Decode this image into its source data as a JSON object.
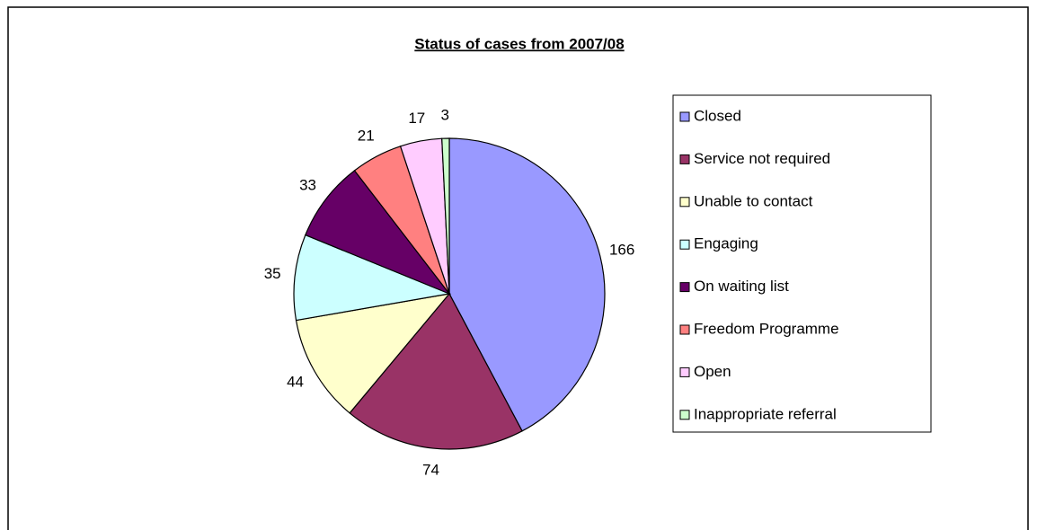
{
  "chart_data": {
    "type": "pie",
    "title": "Status of cases from 2007/08",
    "categories": [
      "Closed",
      "Service not required",
      "Unable to contact",
      "Engaging",
      "On waiting list",
      "Freedom Programme",
      "Open",
      "Inappropriate referral"
    ],
    "values": [
      166,
      74,
      44,
      35,
      33,
      21,
      17,
      3
    ],
    "colors": [
      "#9999ff",
      "#993366",
      "#ffffcc",
      "#ccffff",
      "#660066",
      "#ff8080",
      "#ffccff",
      "#ccffcc"
    ],
    "legend": "right"
  }
}
